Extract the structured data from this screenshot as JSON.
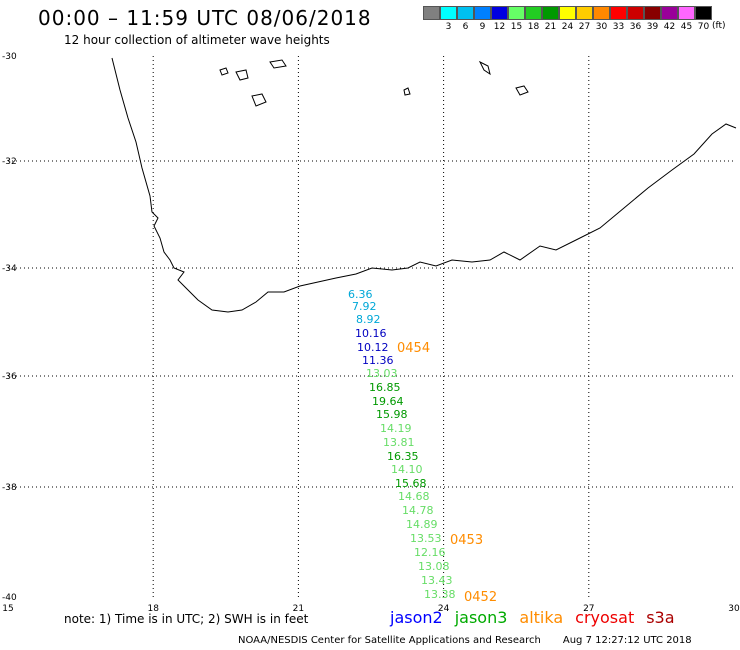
{
  "header": {
    "title": "00:00 – 11:59 UTC 08/06/2018",
    "subtitle": "12 hour collection of altimeter wave heights"
  },
  "legend": {
    "unit": "(ft)",
    "items": [
      {
        "label": "",
        "color": "#808080"
      },
      {
        "label": "3",
        "color": "#00ffff"
      },
      {
        "label": "6",
        "color": "#00c0f0"
      },
      {
        "label": "9",
        "color": "#0080ff"
      },
      {
        "label": "12",
        "color": "#0000e0"
      },
      {
        "label": "15",
        "color": "#66ff66"
      },
      {
        "label": "18",
        "color": "#22cc22"
      },
      {
        "label": "21",
        "color": "#009900"
      },
      {
        "label": "24",
        "color": "#ffff00"
      },
      {
        "label": "27",
        "color": "#ffcc00"
      },
      {
        "label": "30",
        "color": "#ff8800"
      },
      {
        "label": "33",
        "color": "#ff0000"
      },
      {
        "label": "36",
        "color": "#cc0000"
      },
      {
        "label": "39",
        "color": "#880000"
      },
      {
        "label": "42",
        "color": "#990099"
      },
      {
        "label": "45",
        "color": "#ff66ff"
      },
      {
        "label": "70",
        "color": "#000000"
      }
    ]
  },
  "map": {
    "lon_range": [
      15,
      30
    ],
    "lat_range": [
      -40,
      -30
    ],
    "lon_ticks": [
      "15",
      "18",
      "21",
      "24",
      "27",
      "30"
    ],
    "lat_ticks": [
      "-30",
      "-32",
      "-34",
      "-36",
      "-38",
      "-40"
    ],
    "passes": [
      {
        "label": "0454",
        "color": "#ff8c00"
      },
      {
        "label": "0453",
        "color": "#ff8c00"
      },
      {
        "label": "0452",
        "color": "#ff8c00"
      }
    ],
    "swh_readings": [
      {
        "value": "6.36",
        "color": "#00a8d8"
      },
      {
        "value": "7.92",
        "color": "#00a8d8"
      },
      {
        "value": "8.92",
        "color": "#00a8d8"
      },
      {
        "value": "10.16",
        "color": "#0000c0"
      },
      {
        "value": "10.12",
        "color": "#0000c0"
      },
      {
        "value": "11.36",
        "color": "#0000c0"
      },
      {
        "value": "13.03",
        "color": "#66dd66"
      },
      {
        "value": "16.85",
        "color": "#009900"
      },
      {
        "value": "19.64",
        "color": "#009900"
      },
      {
        "value": "15.98",
        "color": "#009900"
      },
      {
        "value": "14.19",
        "color": "#66dd66"
      },
      {
        "value": "13.81",
        "color": "#66dd66"
      },
      {
        "value": "16.35",
        "color": "#009900"
      },
      {
        "value": "14.10",
        "color": "#66dd66"
      },
      {
        "value": "15.68",
        "color": "#009900"
      },
      {
        "value": "14.68",
        "color": "#66dd66"
      },
      {
        "value": "14.78",
        "color": "#66dd66"
      },
      {
        "value": "14.89",
        "color": "#66dd66"
      },
      {
        "value": "13.53",
        "color": "#66dd66"
      },
      {
        "value": "12.16",
        "color": "#66dd66"
      },
      {
        "value": "13.08",
        "color": "#66dd66"
      },
      {
        "value": "13.43",
        "color": "#66dd66"
      },
      {
        "value": "13.38",
        "color": "#66dd66"
      }
    ]
  },
  "notes": {
    "text": "note: 1) Time is in UTC; 2) SWH is in feet"
  },
  "satellites": [
    {
      "name": "jason2",
      "color": "#0000ff"
    },
    {
      "name": "jason3",
      "color": "#00aa00"
    },
    {
      "name": "altika",
      "color": "#ff8c00"
    },
    {
      "name": "cryosat",
      "color": "#ee0000"
    },
    {
      "name": "s3a",
      "color": "#aa0000"
    }
  ],
  "footer": {
    "agency": "NOAA/NESDIS Center for Satellite Applications and Research",
    "timestamp": "Aug  7 12:27:12 UTC 2018"
  }
}
